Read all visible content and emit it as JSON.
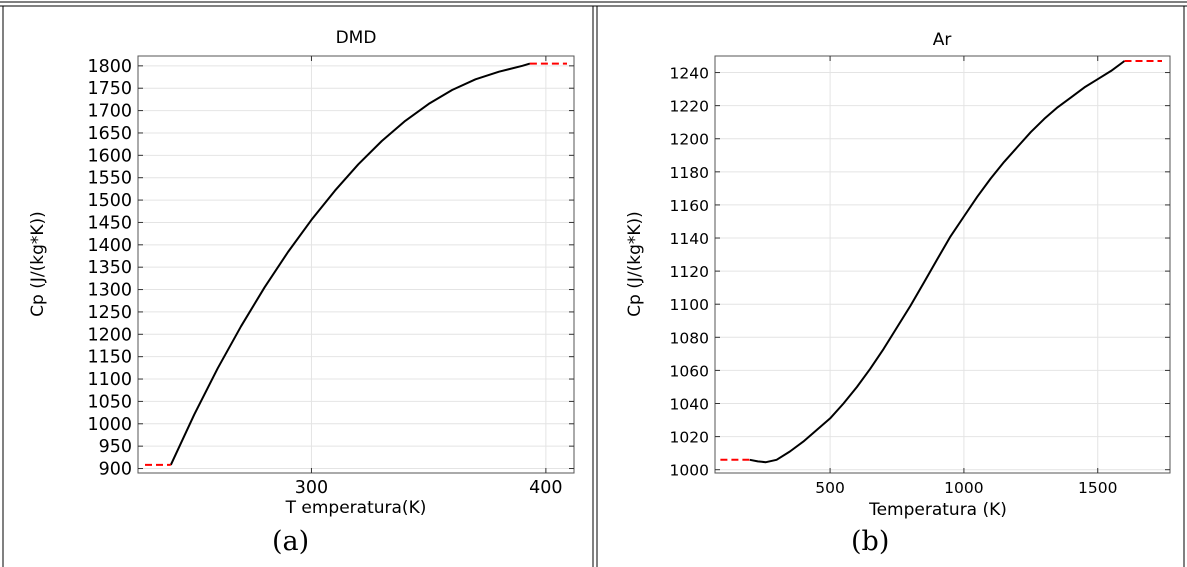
{
  "captions": [
    "(a)",
    "(b)"
  ],
  "chart_data": [
    {
      "type": "line",
      "title": "DMD",
      "xlabel": "T emperatura(K)",
      "ylabel": "Cp (J/(kg*K))",
      "xlim": [
        226,
        412
      ],
      "ylim": [
        890,
        1822
      ],
      "xticks": [
        300,
        400
      ],
      "yticks": [
        900,
        950,
        1000,
        1050,
        1100,
        1150,
        1200,
        1250,
        1300,
        1350,
        1400,
        1450,
        1500,
        1550,
        1600,
        1650,
        1700,
        1750,
        1800
      ],
      "grid": true,
      "series": [
        {
          "color": "#000000",
          "style": "solid",
          "x": [
            240,
            250,
            260,
            270,
            280,
            290,
            300,
            310,
            320,
            330,
            340,
            350,
            360,
            370,
            380,
            390,
            393.2
          ],
          "y": [
            908,
            1021,
            1124,
            1218,
            1305,
            1384,
            1456,
            1521,
            1580,
            1632,
            1677,
            1715,
            1746,
            1770,
            1787,
            1800,
            1805
          ]
        },
        {
          "color": "#ff0000",
          "style": "dashed",
          "x": [
            229,
            240
          ],
          "y": [
            908,
            908
          ]
        },
        {
          "color": "#ff0000",
          "style": "dashed",
          "x": [
            393.2,
            409
          ],
          "y": [
            1805,
            1805
          ]
        }
      ]
    },
    {
      "type": "line",
      "title": "Ar",
      "xlabel": "Temperatura (K)",
      "ylabel": "Cp (J/(kg*K))",
      "xlim": [
        70,
        1770
      ],
      "ylim": [
        998,
        1250
      ],
      "xticks": [
        500,
        1000,
        1500
      ],
      "yticks": [
        1000,
        1020,
        1040,
        1060,
        1080,
        1100,
        1120,
        1140,
        1160,
        1180,
        1200,
        1220,
        1240
      ],
      "grid": true,
      "series": [
        {
          "color": "#000000",
          "style": "solid",
          "x": [
            200,
            230,
            260,
            300,
            350,
            400,
            450,
            500,
            550,
            600,
            650,
            700,
            750,
            800,
            850,
            900,
            950,
            1000,
            1050,
            1100,
            1150,
            1200,
            1250,
            1300,
            1350,
            1400,
            1450,
            1500,
            1550,
            1600
          ],
          "y": [
            1006,
            1005,
            1004.5,
            1006,
            1011,
            1017,
            1024,
            1031,
            1040,
            1050,
            1061,
            1073,
            1086,
            1099,
            1113,
            1127,
            1141,
            1153,
            1165,
            1176,
            1186,
            1195,
            1204,
            1212,
            1219,
            1225,
            1231,
            1236,
            1241,
            1247
          ]
        },
        {
          "color": "#ff0000",
          "style": "dashed",
          "x": [
            90,
            200
          ],
          "y": [
            1006,
            1006
          ]
        },
        {
          "color": "#ff0000",
          "style": "dashed",
          "x": [
            1600,
            1740
          ],
          "y": [
            1247,
            1247
          ]
        }
      ]
    }
  ]
}
